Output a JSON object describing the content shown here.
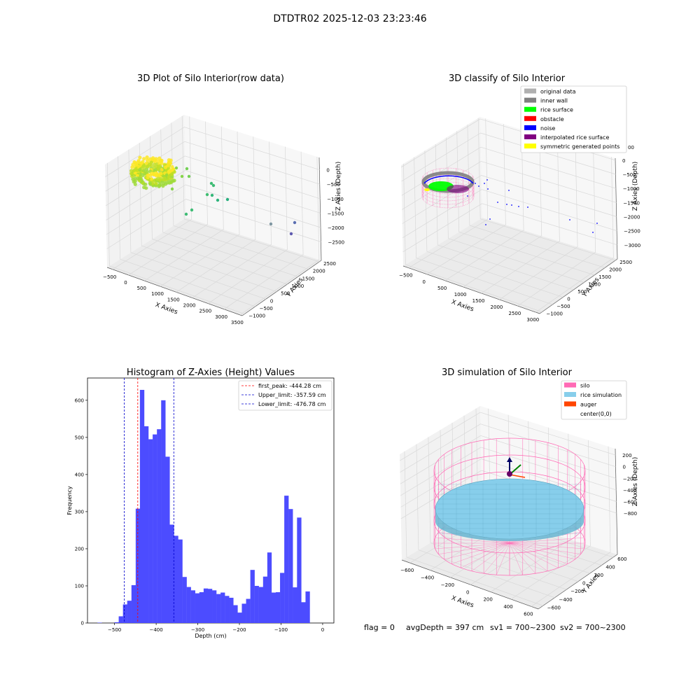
{
  "figure_title": "DTDTR02 2025-12-03 23:23:46",
  "footer": {
    "flag": "flag = 0",
    "avg_depth": "avgDepth = 397 cm",
    "sv1": "sv1 = 700~2300",
    "sv2": "sv2 = 700~2300"
  },
  "colors": {
    "hist_bar": "#4c4cff",
    "peak_line": "#ff0000",
    "limit_line": "#0000cc",
    "silo": "#ff69b4",
    "rice_sim": "#87ceeb",
    "auger": "#ff4500"
  },
  "chart_data": [
    {
      "type": "scatter3d",
      "title": "3D Plot of Silo Interior(row data)",
      "xlabel": "X Axies",
      "ylabel": "Y Axies",
      "zlabel": "Z Axies (Depth)",
      "x_ticks": [
        "−500",
        "0",
        "500",
        "1000",
        "1500",
        "2000",
        "2500",
        "3000",
        "3500"
      ],
      "y_ticks": [
        "−1000",
        "−500",
        "0",
        "500",
        "1000",
        "1500",
        "2000",
        "2500"
      ],
      "z_ticks": [
        "0",
        "−500",
        "−1000",
        "−1500",
        "−2000",
        "−2500"
      ],
      "xlim": [
        -700,
        3500
      ],
      "ylim": [
        -1000,
        2700
      ],
      "zlim": [
        -3000,
        200
      ],
      "colormap": "viridis"
    },
    {
      "type": "scatter3d",
      "title": "3D classify of Silo Interior",
      "legend_position": "upper-right",
      "legend": [
        {
          "label": "original data",
          "color": "#b0b0b0"
        },
        {
          "label": "inner wall",
          "color": "#808080"
        },
        {
          "label": "rice surface",
          "color": "#00ff00"
        },
        {
          "label": "obstacle",
          "color": "#ff0000"
        },
        {
          "label": "noise",
          "color": "#0000ff"
        },
        {
          "label": "interpolated rice surface",
          "color": "#800080"
        },
        {
          "label": "symmetric generated points",
          "color": "#ffff00"
        }
      ],
      "x_ticks": [
        "−500",
        "0",
        "500",
        "1000",
        "1500",
        "2000",
        "2500",
        "3000"
      ],
      "y_ticks": [
        "−1000",
        "−500",
        "0",
        "500",
        "1000",
        "1500",
        "2000",
        "2500"
      ],
      "z_ticks": [
        "0",
        "−500",
        "−1000",
        "−1500",
        "−2000",
        "−2500",
        "−3000"
      ],
      "xlabel": "X Axies",
      "ylabel": "Y Axies",
      "zlabel": "Z Axies (Depth)",
      "partial_tick": "00"
    },
    {
      "type": "bar",
      "title": "Histogram of Z-Axies (Height) Values",
      "xlabel": "Depth (cm)",
      "ylabel": "Frequency",
      "xlim": [
        -565,
        27
      ],
      "ylim": [
        0,
        660
      ],
      "x_ticks": [
        -500,
        -400,
        -300,
        -200,
        -100,
        0
      ],
      "y_ticks": [
        0,
        100,
        200,
        300,
        400,
        500,
        600
      ],
      "bin_width": 10.2,
      "bin_start": -541,
      "values": [
        1,
        0,
        0,
        0,
        2,
        18,
        50,
        60,
        102,
        308,
        628,
        530,
        495,
        508,
        522,
        600,
        448,
        265,
        235,
        225,
        124,
        97,
        88,
        80,
        83,
        93,
        92,
        88,
        78,
        82,
        73,
        68,
        48,
        28,
        52,
        65,
        143,
        100,
        97,
        125,
        190,
        82,
        83,
        135,
        343,
        307,
        96,
        284,
        56,
        85
      ],
      "legend_position": "upper-right",
      "lines": [
        {
          "label": "first_peak: -444.28 cm",
          "value": -444.28,
          "color": "#ff0000"
        },
        {
          "label": "Upper_limit: -357.59 cm",
          "value": -357.59,
          "color": "#0000cc"
        },
        {
          "label": "Lower_limit: -476.78 cm",
          "value": -476.78,
          "color": "#0000cc"
        }
      ]
    },
    {
      "type": "surface3d",
      "title": "3D simulation of Silo Interior",
      "legend_position": "upper-right",
      "legend": [
        {
          "label": "silo",
          "color": "#ff69b4"
        },
        {
          "label": "rice simulation",
          "color": "#87ceeb"
        },
        {
          "label": "auger",
          "color": "#ff4500"
        },
        {
          "label": "center(0,0)",
          "color": ""
        }
      ],
      "x_ticks": [
        "−600",
        "−400",
        "−200",
        "0",
        "200",
        "400",
        "600"
      ],
      "y_ticks": [
        "−600",
        "−400",
        "−200",
        "0",
        "200",
        "400",
        "600"
      ],
      "z_ticks": [
        "200",
        "0",
        "−200",
        "−400",
        "−600",
        "−800"
      ],
      "xlabel": "X Axies",
      "ylabel": "Y Axies",
      "zlabel": "Z Axies (Depth)"
    }
  ]
}
